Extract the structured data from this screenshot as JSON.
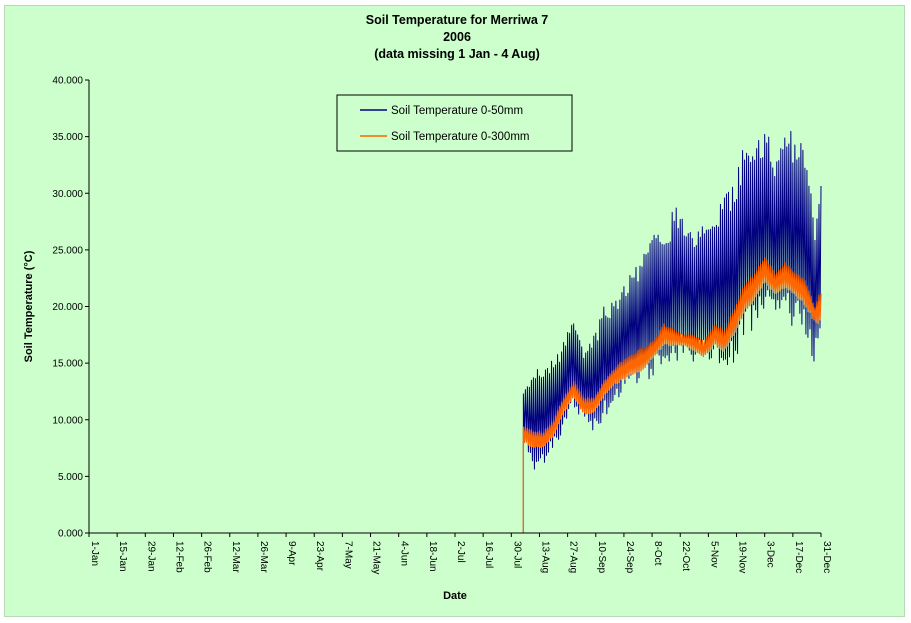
{
  "chart_data": {
    "type": "line",
    "title": [
      "Soil Temperature for Merriwa 7",
      "2006",
      "(data missing 1 Jan - 4 Aug)"
    ],
    "xlabel": "Date",
    "ylabel": "Soil Temperature (°C)",
    "ylim": [
      0,
      40
    ],
    "xlim": [
      "2006-01-01",
      "2006-12-31"
    ],
    "y_ticks": [
      "0.000",
      "5.000",
      "10.000",
      "15.000",
      "20.000",
      "25.000",
      "30.000",
      "35.000",
      "40.000"
    ],
    "x_ticks": [
      "1-Jan",
      "15-Jan",
      "29-Jan",
      "12-Feb",
      "26-Feb",
      "12-Mar",
      "26-Mar",
      "9-Apr",
      "23-Apr",
      "7-May",
      "21-May",
      "4-Jun",
      "18-Jun",
      "2-Jul",
      "16-Jul",
      "30-Jul",
      "13-Aug",
      "27-Aug",
      "10-Sep",
      "24-Sep",
      "8-Oct",
      "22-Oct",
      "5-Nov",
      "19-Nov",
      "3-Dec",
      "17-Dec",
      "31-Dec"
    ],
    "grid": false,
    "legend_position": "top-center",
    "series": [
      {
        "name": "Soil Temperature 0-50mm",
        "color": "#000080",
        "x": [
          "2006-08-05",
          "2006-08-10",
          "2006-08-15",
          "2006-08-20",
          "2006-08-25",
          "2006-08-30",
          "2006-09-04",
          "2006-09-09",
          "2006-09-14",
          "2006-09-19",
          "2006-09-24",
          "2006-09-29",
          "2006-10-04",
          "2006-10-09",
          "2006-10-14",
          "2006-10-19",
          "2006-10-24",
          "2006-10-29",
          "2006-11-03",
          "2006-11-08",
          "2006-11-13",
          "2006-11-18",
          "2006-11-23",
          "2006-11-28",
          "2006-12-03",
          "2006-12-08",
          "2006-12-13",
          "2006-12-18",
          "2006-12-23",
          "2006-12-28",
          "2006-12-31"
        ],
        "min": [
          8.5,
          5.0,
          6.0,
          7.5,
          9.0,
          11.0,
          9.5,
          9.0,
          10.0,
          11.5,
          12.5,
          13.0,
          13.0,
          14.0,
          15.0,
          15.0,
          15.5,
          15.0,
          15.0,
          15.5,
          14.5,
          14.5,
          17.0,
          18.0,
          19.0,
          18.5,
          19.0,
          18.0,
          17.5,
          14.5,
          17.0
        ],
        "max": [
          12.5,
          14.5,
          15.0,
          15.5,
          17.0,
          19.0,
          16.0,
          17.5,
          20.0,
          21.0,
          22.0,
          23.5,
          25.0,
          27.0,
          26.0,
          29.0,
          28.0,
          27.0,
          27.5,
          28.0,
          30.0,
          31.5,
          35.0,
          34.0,
          36.5,
          33.0,
          36.5,
          35.0,
          34.0,
          28.0,
          31.5
        ]
      },
      {
        "name": "Soil Temperature  0-300mm",
        "color": "#ff6600",
        "x": [
          "2006-08-05",
          "2006-08-10",
          "2006-08-15",
          "2006-08-20",
          "2006-08-25",
          "2006-08-30",
          "2006-09-04",
          "2006-09-09",
          "2006-09-14",
          "2006-09-19",
          "2006-09-24",
          "2006-09-29",
          "2006-10-04",
          "2006-10-09",
          "2006-10-14",
          "2006-10-19",
          "2006-10-24",
          "2006-10-29",
          "2006-11-03",
          "2006-11-08",
          "2006-11-13",
          "2006-11-18",
          "2006-11-23",
          "2006-11-28",
          "2006-12-03",
          "2006-12-08",
          "2006-12-13",
          "2006-12-18",
          "2006-12-23",
          "2006-12-28",
          "2006-12-31"
        ],
        "min": [
          8.0,
          7.5,
          7.5,
          8.5,
          10.5,
          12.0,
          10.5,
          10.5,
          12.0,
          13.0,
          13.5,
          14.0,
          14.5,
          15.5,
          16.5,
          16.5,
          16.5,
          16.0,
          15.5,
          16.5,
          16.0,
          17.5,
          19.5,
          20.5,
          22.0,
          21.0,
          21.5,
          21.0,
          20.0,
          18.5,
          18.5
        ],
        "max": [
          9.5,
          9.0,
          9.0,
          10.0,
          12.0,
          13.5,
          12.0,
          12.0,
          13.5,
          14.5,
          15.5,
          16.0,
          16.5,
          17.0,
          18.5,
          18.0,
          17.5,
          17.5,
          17.0,
          18.5,
          18.0,
          20.0,
          22.0,
          23.0,
          24.5,
          23.0,
          24.0,
          23.0,
          22.5,
          20.0,
          21.5
        ]
      }
    ]
  }
}
